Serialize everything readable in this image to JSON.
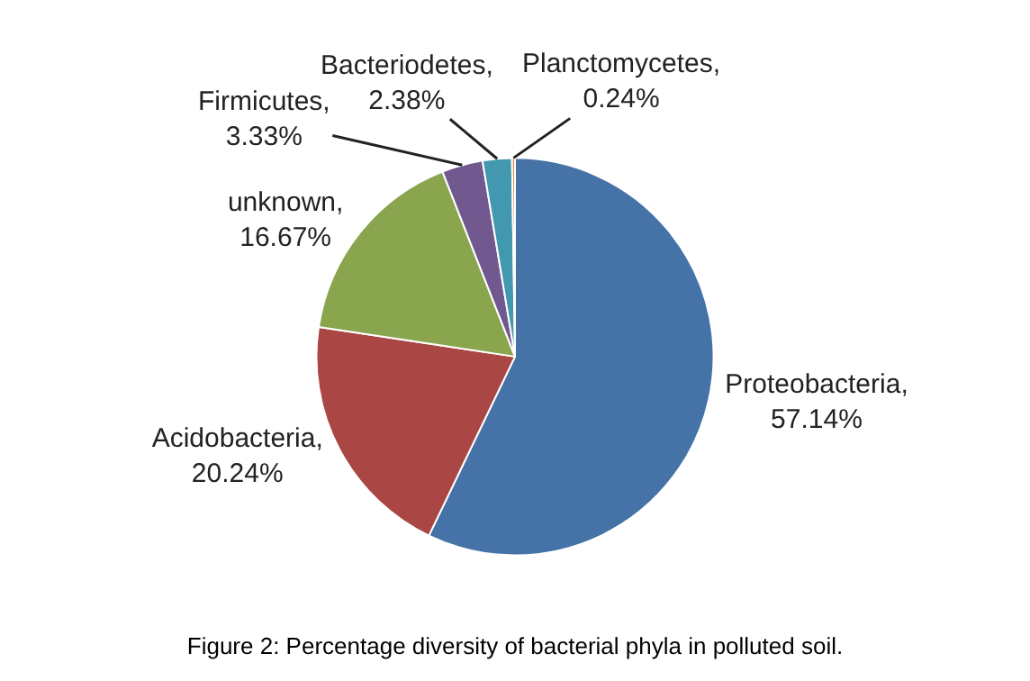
{
  "chart_data": {
    "type": "pie",
    "title": "Figure 2: Percentage diversity of bacterial phyla in polluted soil.",
    "categories": [
      "Proteobacteria",
      "Acidobacteria",
      "unknown",
      "Firmicutes",
      "Bacteriodetes",
      "Planctomycetes"
    ],
    "values": [
      57.14,
      20.24,
      16.67,
      3.33,
      2.38,
      0.24
    ],
    "value_labels": [
      ", 57.14%",
      ", 20.24%",
      ", 16.67%",
      ", 3.33%",
      ", 2.38%",
      ", 0.24%"
    ],
    "colors": [
      "#4572a7",
      "#aa4643",
      "#89a54e",
      "#71588f",
      "#4198af",
      "#db843d"
    ],
    "legend": false
  }
}
